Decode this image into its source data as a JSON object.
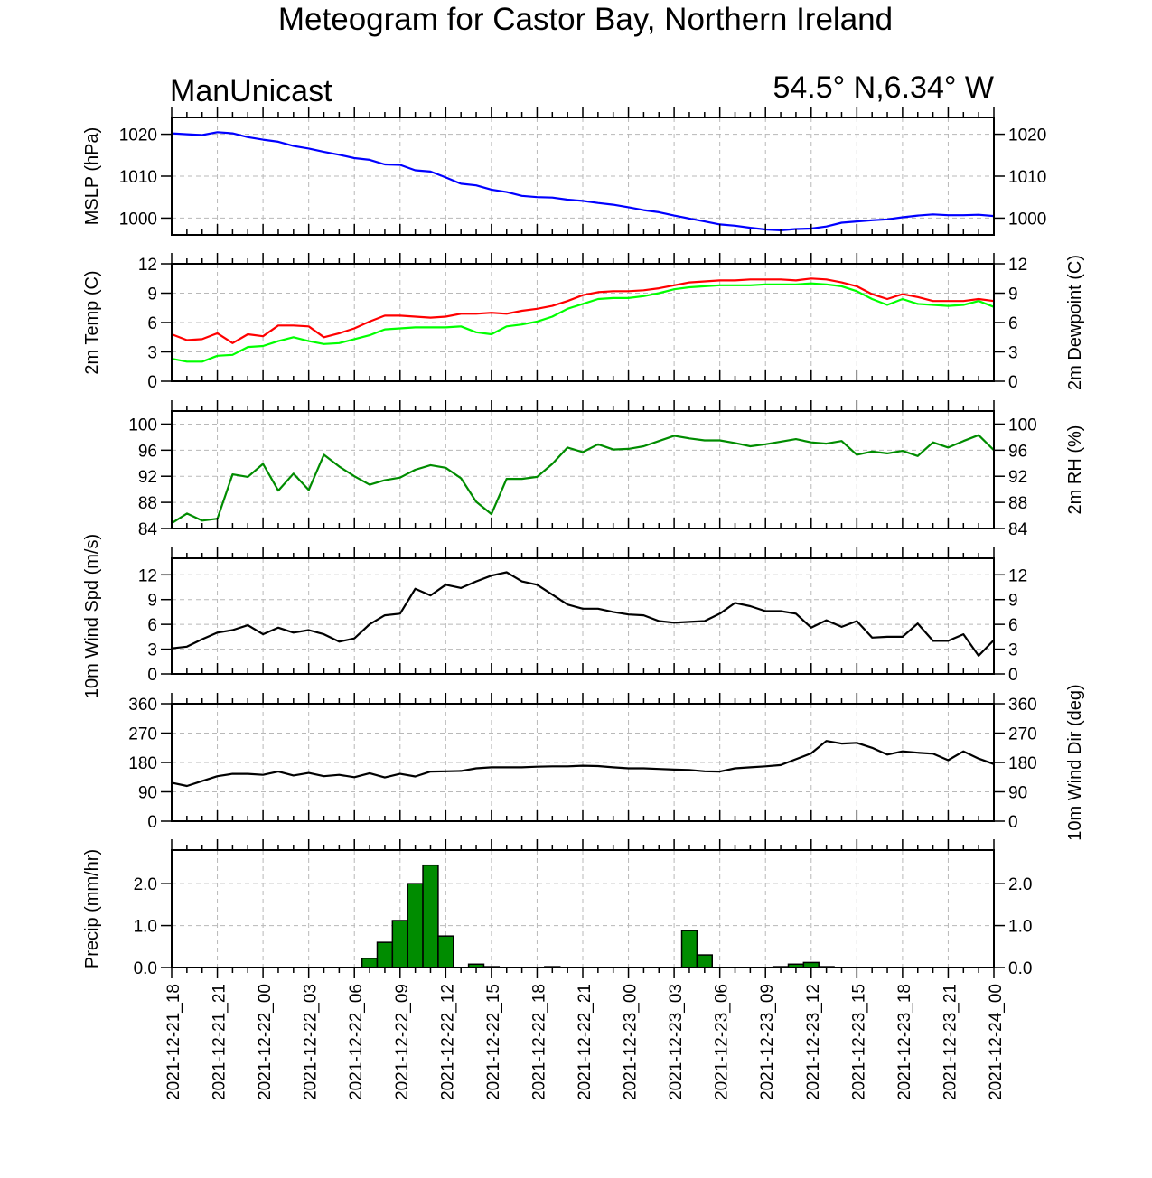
{
  "title": "Meteogram for Castor Bay, Northern Ireland",
  "model_label": "ManUnicast",
  "location_label": "54.5° N,6.34° W",
  "chart_data": {
    "type": "line",
    "x_tick_labels": [
      "2021-12-21_18",
      "2021-12-21_21",
      "2021-12-22_00",
      "2021-12-22_03",
      "2021-12-22_06",
      "2021-12-22_09",
      "2021-12-22_12",
      "2021-12-22_15",
      "2021-12-22_18",
      "2021-12-22_21",
      "2021-12-23_00",
      "2021-12-23_03",
      "2021-12-23_06",
      "2021-12-23_09",
      "2021-12-23_12",
      "2021-12-23_15",
      "2021-12-23_18",
      "2021-12-23_21",
      "2021-12-24_00"
    ],
    "x_range_hours": [
      0,
      54
    ],
    "grid": true,
    "panels": [
      {
        "name": "mslp",
        "ylabel_left": "MSLP (hPa)",
        "ylabel_right": "",
        "ylim": [
          996,
          1024
        ],
        "yticks": [
          1000,
          1010,
          1020
        ],
        "right_tick_labels": true,
        "series": [
          {
            "color": "#0000ff",
            "x": [
              0,
              1,
              2,
              3,
              4,
              5,
              6,
              7,
              8,
              9,
              10,
              11,
              12,
              13,
              14,
              15,
              16,
              17,
              18,
              19,
              20,
              21,
              22,
              23,
              24,
              25,
              26,
              27,
              28,
              29,
              30,
              31,
              32,
              33,
              34,
              35,
              36,
              37,
              38,
              39,
              40,
              41,
              42,
              43,
              44,
              45,
              46,
              47,
              48,
              49,
              50,
              51,
              52,
              53,
              54
            ],
            "values": [
              1020.2,
              1020.0,
              1019.8,
              1020.5,
              1020.2,
              1019.3,
              1018.7,
              1018.2,
              1017.2,
              1016.6,
              1015.8,
              1015.1,
              1014.3,
              1013.9,
              1012.8,
              1012.7,
              1011.4,
              1011.1,
              1009.7,
              1008.2,
              1007.8,
              1006.8,
              1006.2,
              1005.3,
              1005.0,
              1004.9,
              1004.4,
              1004.1,
              1003.6,
              1003.2,
              1002.6,
              1001.9,
              1001.4,
              1000.6,
              999.9,
              999.2,
              998.5,
              998.2,
              997.7,
              997.3,
              997.1,
              997.4,
              997.5,
              998.0,
              998.9,
              999.2,
              999.5,
              999.7,
              1000.2,
              1000.6,
              1000.9,
              1000.7,
              1000.7,
              1000.8,
              1000.5
            ]
          }
        ]
      },
      {
        "name": "temperature",
        "ylabel_left": "2m Temp (C)",
        "ylabel_right": "2m Dewpoint (C)",
        "ylim": [
          0,
          12
        ],
        "yticks": [
          0,
          3,
          6,
          9,
          12
        ],
        "right_tick_labels": true,
        "series": [
          {
            "color": "#ff0000",
            "x": [
              0,
              1,
              2,
              3,
              4,
              5,
              6,
              7,
              8,
              9,
              10,
              11,
              12,
              13,
              14,
              15,
              16,
              17,
              18,
              19,
              20,
              21,
              22,
              23,
              24,
              25,
              26,
              27,
              28,
              29,
              30,
              31,
              32,
              33,
              34,
              35,
              36,
              37,
              38,
              39,
              40,
              41,
              42,
              43,
              44,
              45,
              46,
              47,
              48,
              49,
              50,
              51,
              52,
              53,
              54
            ],
            "values": [
              4.8,
              4.2,
              4.3,
              4.9,
              3.9,
              4.8,
              4.6,
              5.7,
              5.7,
              5.6,
              4.5,
              4.9,
              5.4,
              6.1,
              6.7,
              6.7,
              6.6,
              6.5,
              6.6,
              6.9,
              6.9,
              7.0,
              6.9,
              7.2,
              7.4,
              7.7,
              8.2,
              8.8,
              9.1,
              9.2,
              9.2,
              9.3,
              9.5,
              9.8,
              10.1,
              10.2,
              10.3,
              10.3,
              10.4,
              10.4,
              10.4,
              10.3,
              10.5,
              10.4,
              10.1,
              9.7,
              8.9,
              8.4,
              8.9,
              8.6,
              8.2,
              8.2,
              8.2,
              8.4,
              8.2
            ]
          },
          {
            "color": "#00ff00",
            "x": [
              0,
              1,
              2,
              3,
              4,
              5,
              6,
              7,
              8,
              9,
              10,
              11,
              12,
              13,
              14,
              15,
              16,
              17,
              18,
              19,
              20,
              21,
              22,
              23,
              24,
              25,
              26,
              27,
              28,
              29,
              30,
              31,
              32,
              33,
              34,
              35,
              36,
              37,
              38,
              39,
              40,
              41,
              42,
              43,
              44,
              45,
              46,
              47,
              48,
              49,
              50,
              51,
              52,
              53,
              54
            ],
            "values": [
              2.3,
              2.0,
              2.0,
              2.6,
              2.7,
              3.5,
              3.6,
              4.1,
              4.5,
              4.1,
              3.8,
              3.9,
              4.3,
              4.7,
              5.3,
              5.4,
              5.5,
              5.5,
              5.5,
              5.6,
              5.0,
              4.8,
              5.6,
              5.8,
              6.1,
              6.6,
              7.4,
              7.9,
              8.4,
              8.5,
              8.5,
              8.7,
              9.0,
              9.4,
              9.6,
              9.7,
              9.8,
              9.8,
              9.8,
              9.9,
              9.9,
              9.9,
              10.0,
              9.9,
              9.7,
              9.2,
              8.4,
              7.8,
              8.4,
              7.9,
              7.8,
              7.7,
              7.8,
              8.2,
              7.6
            ]
          }
        ]
      },
      {
        "name": "relative-humidity",
        "ylabel_left": "",
        "ylabel_right": "2m RH (%)",
        "ylim": [
          84,
          102
        ],
        "yticks": [
          84,
          88,
          92,
          96,
          100
        ],
        "right_tick_labels": true,
        "series": [
          {
            "color": "#008c00",
            "x": [
              0,
              1,
              2,
              3,
              4,
              5,
              6,
              7,
              8,
              9,
              10,
              11,
              12,
              13,
              14,
              15,
              16,
              17,
              18,
              19,
              20,
              21,
              22,
              23,
              24,
              25,
              26,
              27,
              28,
              29,
              30,
              31,
              32,
              33,
              34,
              35,
              36,
              37,
              38,
              39,
              40,
              41,
              42,
              43,
              44,
              45,
              46,
              47,
              48,
              49,
              50,
              51,
              52,
              53,
              54
            ],
            "values": [
              84.8,
              86.3,
              85.2,
              85.5,
              92.3,
              91.9,
              93.9,
              89.8,
              92.4,
              89.9,
              95.3,
              93.5,
              92.0,
              90.7,
              91.4,
              91.8,
              93.0,
              93.7,
              93.3,
              91.7,
              88.1,
              86.2,
              91.6,
              91.6,
              91.9,
              93.9,
              96.4,
              95.7,
              96.9,
              96.1,
              96.2,
              96.6,
              97.4,
              98.2,
              97.8,
              97.5,
              97.5,
              97.1,
              96.6,
              96.9,
              97.3,
              97.7,
              97.2,
              97.0,
              97.4,
              95.3,
              95.8,
              95.5,
              95.9,
              95.1,
              97.2,
              96.4,
              97.4,
              98.3,
              96.0
            ]
          }
        ]
      },
      {
        "name": "wind-speed",
        "ylabel_left": "10m Wind Spd (m/s)",
        "ylabel_right": "",
        "ylim": [
          0,
          14
        ],
        "yticks": [
          0,
          3,
          6,
          9,
          12
        ],
        "right_tick_labels": true,
        "series": [
          {
            "color": "#000000",
            "x": [
              0,
              1,
              2,
              3,
              4,
              5,
              6,
              7,
              8,
              9,
              10,
              11,
              12,
              13,
              14,
              15,
              16,
              17,
              18,
              19,
              20,
              21,
              22,
              23,
              24,
              25,
              26,
              27,
              28,
              29,
              30,
              31,
              32,
              33,
              34,
              35,
              36,
              37,
              38,
              39,
              40,
              41,
              42,
              43,
              44,
              45,
              46,
              47,
              48,
              49,
              50,
              51,
              52,
              53,
              54
            ],
            "values": [
              3.1,
              3.3,
              4.2,
              5.0,
              5.3,
              5.9,
              4.8,
              5.6,
              5.0,
              5.3,
              4.8,
              3.9,
              4.3,
              6.0,
              7.1,
              7.3,
              10.3,
              9.5,
              10.8,
              10.4,
              11.2,
              11.9,
              12.3,
              11.2,
              10.8,
              9.6,
              8.4,
              7.9,
              7.9,
              7.5,
              7.2,
              7.1,
              6.4,
              6.2,
              6.3,
              6.4,
              7.3,
              8.6,
              8.2,
              7.6,
              7.6,
              7.3,
              5.6,
              6.5,
              5.7,
              6.4,
              4.4,
              4.5,
              4.5,
              6.1,
              4.0,
              4.0,
              4.8,
              2.2,
              4.1
            ]
          }
        ]
      },
      {
        "name": "wind-direction",
        "ylabel_left": "",
        "ylabel_right": "10m Wind Dir (deg)",
        "ylim": [
          0,
          360
        ],
        "yticks": [
          0,
          90,
          180,
          270,
          360
        ],
        "right_tick_labels": true,
        "series": [
          {
            "color": "#000000",
            "x": [
              0,
              1,
              2,
              3,
              4,
              5,
              6,
              7,
              8,
              9,
              10,
              11,
              12,
              13,
              14,
              15,
              16,
              17,
              18,
              19,
              20,
              21,
              22,
              23,
              24,
              25,
              26,
              27,
              28,
              29,
              30,
              31,
              32,
              33,
              34,
              35,
              36,
              37,
              38,
              39,
              40,
              41,
              42,
              43,
              44,
              45,
              46,
              47,
              48,
              49,
              50,
              51,
              52,
              53,
              54
            ],
            "values": [
              118,
              108,
              123,
              138,
              145,
              145,
              142,
              152,
              140,
              148,
              138,
              142,
              135,
              147,
              134,
              145,
              137,
              152,
              153,
              154,
              162,
              165,
              165,
              165,
              167,
              168,
              168,
              170,
              169,
              165,
              162,
              162,
              160,
              158,
              157,
              153,
              152,
              162,
              165,
              168,
              172,
              190,
              208,
              246,
              238,
              240,
              225,
              204,
              214,
              210,
              207,
              187,
              214,
              192,
              175
            ]
          }
        ]
      },
      {
        "name": "precipitation",
        "ylabel_left": "Precip (mm/hr)",
        "ylabel_right": "",
        "ylim": [
          0,
          2.8
        ],
        "yticks": [
          0.0,
          1.0,
          2.0
        ],
        "ytick_labels": [
          "0.0",
          "1.0",
          "2.0"
        ],
        "right_tick_labels": true,
        "bar_color": "#008c00",
        "bars": {
          "x": [
            13,
            14,
            15,
            16,
            17,
            18,
            20,
            21,
            25,
            34,
            35,
            40,
            41,
            42,
            43
          ],
          "values": [
            0.22,
            0.6,
            1.12,
            2.0,
            2.44,
            0.75,
            0.08,
            0.02,
            0.02,
            0.88,
            0.3,
            0.02,
            0.08,
            0.12,
            0.02
          ]
        }
      }
    ]
  }
}
